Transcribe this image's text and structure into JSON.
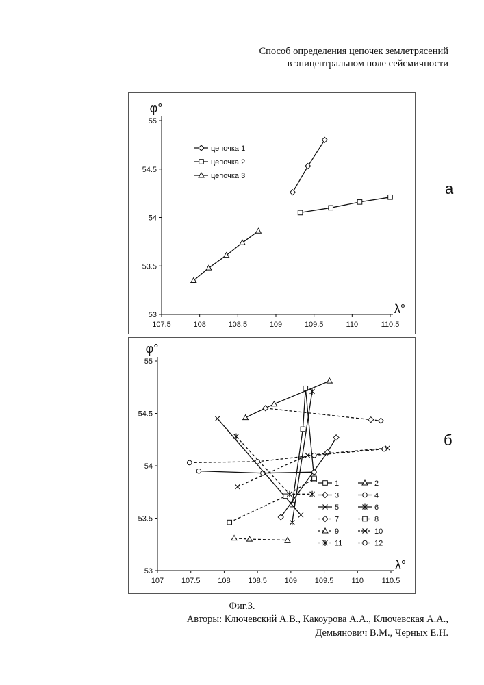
{
  "header": {
    "line1": "Способ определения цепочек землетрясений",
    "line2": "в эпицентральном поле сейсмичности"
  },
  "panel_labels": {
    "a": "а",
    "b": "б"
  },
  "caption": "Фиг.3.",
  "authors": {
    "line1": "Авторы: Ключевский А.В., Какоурова А.А., Ключевская А.А.,",
    "line2": "Демьянович В.М., Черных Е.Н."
  },
  "colors": {
    "line": "#111111",
    "frame": "#555555"
  },
  "chart_data": [
    {
      "type": "line",
      "xlabel": "λ°",
      "ylabel": "φ°",
      "xlim": [
        107.5,
        110.5
      ],
      "ylim": [
        53,
        55
      ],
      "xticks": [
        "107.5",
        "108",
        "108.5",
        "109",
        "109.5",
        "110",
        "110.5"
      ],
      "yticks": [
        "53",
        "53.5",
        "54",
        "54.5",
        "55"
      ],
      "legend_position": "top-left",
      "series": [
        {
          "name": "цепочка 1",
          "marker": "diamond",
          "dash": false,
          "points": [
            [
              109.22,
              54.26
            ],
            [
              109.42,
              54.53
            ],
            [
              109.64,
              54.8
            ]
          ]
        },
        {
          "name": "цепочка 2",
          "marker": "square",
          "dash": false,
          "points": [
            [
              109.32,
              54.05
            ],
            [
              109.72,
              54.1
            ],
            [
              110.1,
              54.16
            ],
            [
              110.5,
              54.21
            ]
          ]
        },
        {
          "name": "цепочка 3",
          "marker": "triangle",
          "dash": false,
          "points": [
            [
              107.92,
              53.35
            ],
            [
              108.12,
              53.48
            ],
            [
              108.35,
              53.61
            ],
            [
              108.56,
              53.74
            ],
            [
              108.77,
              53.86
            ]
          ]
        }
      ]
    },
    {
      "type": "line",
      "xlabel": "λ°",
      "ylabel": "φ°",
      "xlim": [
        107,
        110.5
      ],
      "ylim": [
        53,
        55
      ],
      "xticks": [
        "107",
        "107.5",
        "108",
        "108.5",
        "109",
        "109.5",
        "110",
        "110.5"
      ],
      "yticks": [
        "53",
        "53.5",
        "54",
        "54.5",
        "55"
      ],
      "legend_position": "bottom-right",
      "series": [
        {
          "name": "1",
          "marker": "square",
          "dash": false,
          "points": [
            [
              109.02,
              53.63
            ],
            [
              109.18,
              54.35
            ],
            [
              109.22,
              54.74
            ],
            [
              109.35,
              53.87
            ]
          ]
        },
        {
          "name": "2",
          "marker": "triangle",
          "dash": false,
          "points": [
            [
              108.32,
              54.46
            ],
            [
              108.75,
              54.59
            ],
            [
              109.58,
              54.81
            ]
          ]
        },
        {
          "name": "3",
          "marker": "diamond",
          "dash": false,
          "points": [
            [
              108.85,
              53.51
            ],
            [
              109.55,
              54.13
            ],
            [
              109.68,
              54.27
            ]
          ]
        },
        {
          "name": "4",
          "marker": "circle",
          "dash": false,
          "points": [
            [
              107.62,
              53.95
            ],
            [
              108.58,
              53.93
            ],
            [
              109.35,
              53.94
            ]
          ]
        },
        {
          "name": "5",
          "marker": "x",
          "dash": false,
          "points": [
            [
              107.9,
              54.45
            ],
            [
              109.15,
              53.53
            ]
          ]
        },
        {
          "name": "6",
          "marker": "star",
          "dash": false,
          "points": [
            [
              109.02,
              53.46
            ],
            [
              109.32,
              54.71
            ]
          ]
        },
        {
          "name": "7",
          "marker": "diamond",
          "dash": true,
          "points": [
            [
              108.62,
              54.55
            ],
            [
              110.2,
              54.44
            ],
            [
              110.35,
              54.43
            ]
          ]
        },
        {
          "name": "8",
          "marker": "square",
          "dash": true,
          "points": [
            [
              108.08,
              53.46
            ],
            [
              108.92,
              53.71
            ],
            [
              109.35,
              53.88
            ]
          ]
        },
        {
          "name": "9",
          "marker": "triangle",
          "dash": true,
          "points": [
            [
              108.15,
              53.31
            ],
            [
              108.38,
              53.3
            ],
            [
              108.95,
              53.29
            ]
          ]
        },
        {
          "name": "10",
          "marker": "x",
          "dash": true,
          "points": [
            [
              108.2,
              53.8
            ],
            [
              109.25,
              54.1
            ],
            [
              110.45,
              54.17
            ]
          ]
        },
        {
          "name": "11",
          "marker": "star",
          "dash": true,
          "points": [
            [
              108.18,
              54.28
            ],
            [
              108.98,
              53.73
            ],
            [
              109.32,
              53.73
            ]
          ]
        },
        {
          "name": "12",
          "marker": "circle",
          "dash": true,
          "points": [
            [
              107.48,
              54.03
            ],
            [
              108.5,
              54.04
            ],
            [
              109.35,
              54.1
            ],
            [
              110.4,
              54.16
            ]
          ]
        }
      ]
    }
  ]
}
